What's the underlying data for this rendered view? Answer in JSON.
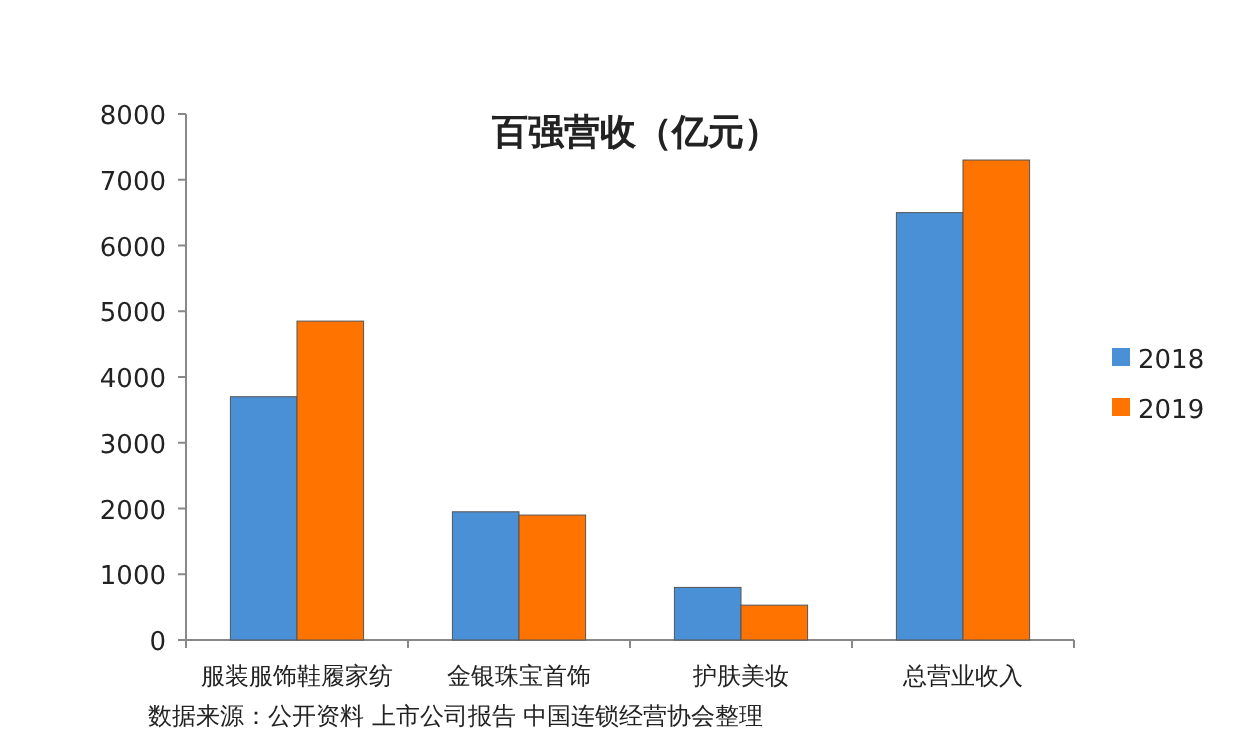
{
  "chart_data": {
    "type": "bar",
    "title": "百强营收（亿元）",
    "categories": [
      "服装服饰鞋履家纺",
      "金银珠宝首饰",
      "护肤美妆",
      "总营业收入"
    ],
    "series": [
      {
        "name": "2018",
        "color": "#4a90d6",
        "values": [
          3700,
          1950,
          800,
          6500
        ]
      },
      {
        "name": "2019",
        "color": "#ff7300",
        "values": [
          4850,
          1900,
          530,
          7300
        ]
      }
    ],
    "ylim": [
      0,
      8000
    ],
    "yticks": [
      0,
      1000,
      2000,
      3000,
      4000,
      5000,
      6000,
      7000,
      8000
    ],
    "grid": false,
    "legend": "right",
    "annotations": [
      "数据来源：公开资料  上市公司报告  中国连锁经营协会整理"
    ]
  }
}
